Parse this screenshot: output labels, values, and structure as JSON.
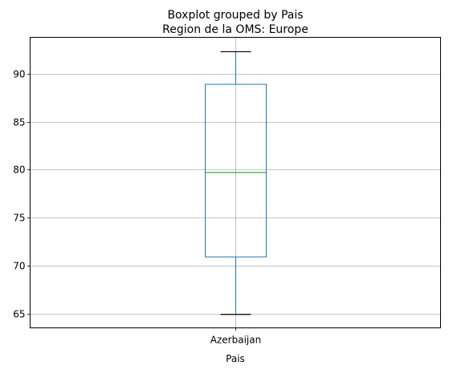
{
  "chart_data": {
    "type": "box",
    "suptitle": "Boxplot grouped by Pais",
    "title": "Region de la OMS: Europe",
    "xlabel": "Pais",
    "ylabel": "",
    "categories": [
      "Azerbaijan"
    ],
    "boxes": [
      {
        "category": "Azerbaijan",
        "whisker_low": 64.9,
        "q1": 70.9,
        "median": 79.7,
        "q3": 88.9,
        "whisker_high": 92.3
      }
    ],
    "ylim": [
      63.5,
      93.8
    ],
    "yticks": [
      65,
      70,
      75,
      80,
      85,
      90
    ],
    "ytick_labels": [
      "65",
      "70",
      "75",
      "80",
      "85",
      "90"
    ],
    "grid": true,
    "colors": {
      "box": "#1f77b4",
      "median": "#2ca02c",
      "whisker_cap": "#000000",
      "grid": "#b0b0b0"
    }
  }
}
